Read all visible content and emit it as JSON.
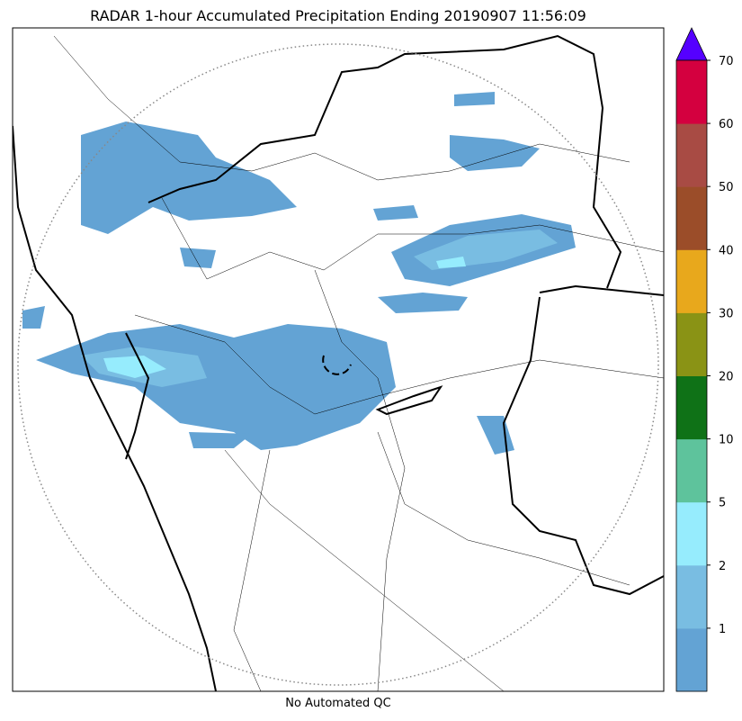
{
  "title": "RADAR 1-hour Accumulated Precipitation Ending 20190907 11:56:09",
  "footer": "No Automated QC",
  "colorbar": {
    "ticks": [
      1,
      2,
      5,
      10,
      20,
      30,
      40,
      50,
      60,
      70
    ],
    "colors": [
      "#63a3d4",
      "#79bde2",
      "#96ecfd",
      "#5ec39c",
      "#0f7217",
      "#8a9315",
      "#e8a81c",
      "#9b4d29",
      "#a84b44",
      "#d4003f"
    ],
    "extend_color": "#5500ff"
  }
}
